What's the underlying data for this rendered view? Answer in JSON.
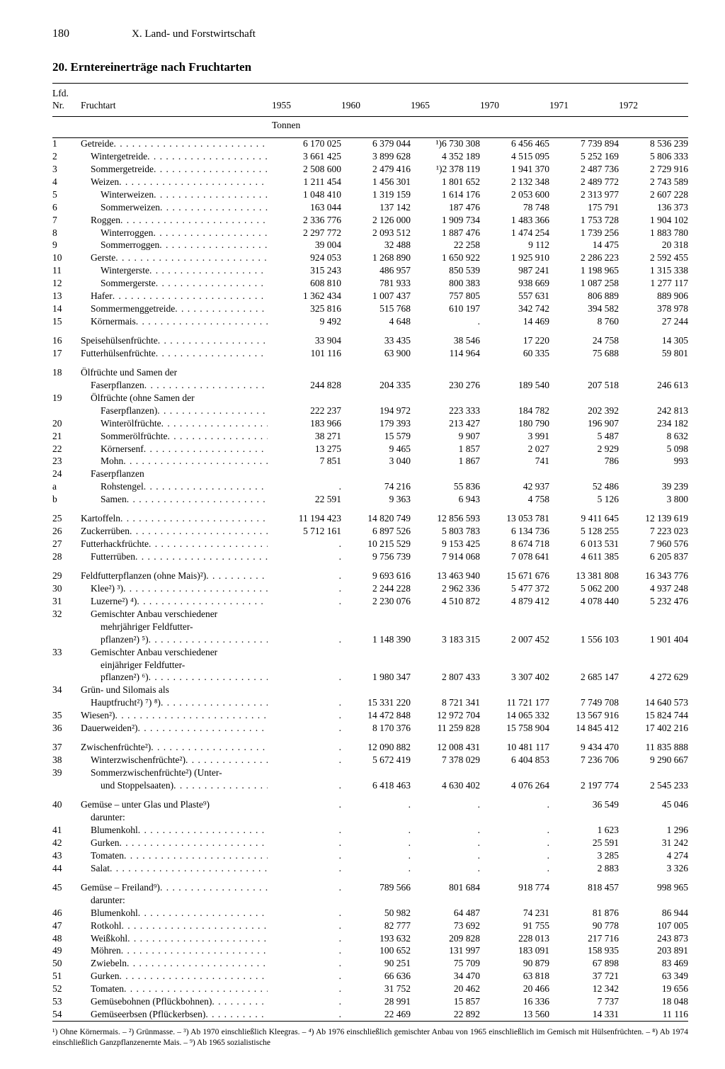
{
  "page_number": "180",
  "section_header": "X. Land- und Forstwirtschaft",
  "table_title": "20. Erntereinerträge nach Fruchtarten",
  "columns": {
    "nr": "Lfd.\nNr.",
    "name": "Fruchtart",
    "years": [
      "1955",
      "1960",
      "1965",
      "1970",
      "1971",
      "1972"
    ],
    "unit": "Tonnen"
  },
  "rows": [
    {
      "nr": "1",
      "label": "Getreide",
      "dots": true,
      "indent": 0,
      "vals": [
        "6 170 025",
        "6 379 044",
        "¹)6 730 308",
        "6 456 465",
        "7 739 894",
        "8 536 239"
      ]
    },
    {
      "nr": "2",
      "label": "Wintergetreide",
      "dots": true,
      "indent": 1,
      "vals": [
        "3 661 425",
        "3 899 628",
        "4 352 189",
        "4 515 095",
        "5 252 169",
        "5 806 333"
      ]
    },
    {
      "nr": "3",
      "label": "Sommergetreide",
      "dots": true,
      "indent": 1,
      "vals": [
        "2 508 600",
        "2 479 416",
        "¹)2 378 119",
        "1 941 370",
        "2 487 736",
        "2 729 916"
      ]
    },
    {
      "nr": "4",
      "label": "Weizen",
      "dots": true,
      "indent": 1,
      "vals": [
        "1 211 454",
        "1 456 301",
        "1 801 652",
        "2 132 348",
        "2 489 772",
        "2 743 589"
      ]
    },
    {
      "nr": "5",
      "label": "Winterweizen",
      "dots": true,
      "indent": 2,
      "vals": [
        "1 048 410",
        "1 319 159",
        "1 614 176",
        "2 053 600",
        "2 313 977",
        "2 607 228"
      ]
    },
    {
      "nr": "6",
      "label": "Sommerweizen",
      "dots": true,
      "indent": 2,
      "vals": [
        "163 044",
        "137 142",
        "187 476",
        "78 748",
        "175 791",
        "136 373"
      ]
    },
    {
      "nr": "7",
      "label": "Roggen",
      "dots": true,
      "indent": 1,
      "vals": [
        "2 336 776",
        "2 126 000",
        "1 909 734",
        "1 483 366",
        "1 753 728",
        "1 904 102"
      ]
    },
    {
      "nr": "8",
      "label": "Winterroggen",
      "dots": true,
      "indent": 2,
      "vals": [
        "2 297 772",
        "2 093 512",
        "1 887 476",
        "1 474 254",
        "1 739 256",
        "1 883 780"
      ]
    },
    {
      "nr": "9",
      "label": "Sommerroggen",
      "dots": true,
      "indent": 2,
      "vals": [
        "39 004",
        "32 488",
        "22 258",
        "9 112",
        "14 475",
        "20 318"
      ]
    },
    {
      "nr": "10",
      "label": "Gerste",
      "dots": true,
      "indent": 1,
      "vals": [
        "924 053",
        "1 268 890",
        "1 650 922",
        "1 925 910",
        "2 286 223",
        "2 592 455"
      ]
    },
    {
      "nr": "11",
      "label": "Wintergerste",
      "dots": true,
      "indent": 2,
      "vals": [
        "315 243",
        "486 957",
        "850 539",
        "987 241",
        "1 198 965",
        "1 315 338"
      ]
    },
    {
      "nr": "12",
      "label": "Sommergerste",
      "dots": true,
      "indent": 2,
      "vals": [
        "608 810",
        "781 933",
        "800 383",
        "938 669",
        "1 087 258",
        "1 277 117"
      ]
    },
    {
      "nr": "13",
      "label": "Hafer",
      "dots": true,
      "indent": 1,
      "vals": [
        "1 362 434",
        "1 007 437",
        "757 805",
        "557 631",
        "806 889",
        "889 906"
      ]
    },
    {
      "nr": "14",
      "label": "Sommermenggetreide",
      "dots": true,
      "indent": 1,
      "vals": [
        "325 816",
        "515 768",
        "610 197",
        "342 742",
        "394 582",
        "378 978"
      ]
    },
    {
      "nr": "15",
      "label": "Körnermais",
      "dots": true,
      "indent": 1,
      "vals": [
        "9 492",
        "4 648",
        ".",
        "14 469",
        "8 760",
        "27 244"
      ]
    },
    {
      "gap": true,
      "nr": "16",
      "label": "Speisehülsenfrüchte",
      "dots": true,
      "indent": 0,
      "vals": [
        "33 904",
        "33 435",
        "38 546",
        "17 220",
        "24 758",
        "14 305"
      ]
    },
    {
      "nr": "17",
      "label": "Futterhülsenfrüchte",
      "dots": true,
      "indent": 0,
      "vals": [
        "101 116",
        "63 900",
        "114 964",
        "60 335",
        "75 688",
        "59 801"
      ]
    },
    {
      "gap": true,
      "nr": "18",
      "label": "Ölfrüchte und Samen der",
      "dots": false,
      "indent": 0,
      "vals": [
        "",
        "",
        "",
        "",
        "",
        ""
      ]
    },
    {
      "nr": "",
      "label": "Faserpflanzen",
      "dots": true,
      "indent": 1,
      "vals": [
        "244 828",
        "204 335",
        "230 276",
        "189 540",
        "207 518",
        "246 613"
      ]
    },
    {
      "nr": "19",
      "label": "Ölfrüchte (ohne Samen der",
      "dots": false,
      "indent": 1,
      "vals": [
        "",
        "",
        "",
        "",
        "",
        ""
      ]
    },
    {
      "nr": "",
      "label": "Faserpflanzen)",
      "dots": true,
      "indent": 2,
      "vals": [
        "222 237",
        "194 972",
        "223 333",
        "184 782",
        "202 392",
        "242 813"
      ]
    },
    {
      "nr": "20",
      "label": "Winterölfrüchte",
      "dots": true,
      "indent": 2,
      "vals": [
        "183 966",
        "179 393",
        "213 427",
        "180 790",
        "196 907",
        "234 182"
      ]
    },
    {
      "nr": "21",
      "label": "Sommerölfrüchte",
      "dots": true,
      "indent": 2,
      "vals": [
        "38 271",
        "15 579",
        "9 907",
        "3 991",
        "5 487",
        "8 632"
      ]
    },
    {
      "nr": "22",
      "label": "Körnersenf",
      "dots": true,
      "indent": 2,
      "vals": [
        "13 275",
        "9 465",
        "1 857",
        "2 027",
        "2 929",
        "5 098"
      ]
    },
    {
      "nr": "23",
      "label": "Mohn",
      "dots": true,
      "indent": 2,
      "vals": [
        "7 851",
        "3 040",
        "1 867",
        "741",
        "786",
        "993"
      ]
    },
    {
      "nr": "24",
      "label": "Faserpflanzen",
      "dots": false,
      "indent": 1,
      "vals": [
        "",
        "",
        "",
        "",
        "",
        ""
      ]
    },
    {
      "nr": "a",
      "label": "Rohstengel",
      "dots": true,
      "indent": 2,
      "vals": [
        ".",
        "74 216",
        "55 836",
        "42 937",
        "52 486",
        "39 239"
      ]
    },
    {
      "nr": "b",
      "label": "Samen",
      "dots": true,
      "indent": 2,
      "vals": [
        "22 591",
        "9 363",
        "6 943",
        "4 758",
        "5 126",
        "3 800"
      ]
    },
    {
      "gap": true,
      "nr": "25",
      "label": "Kartoffeln",
      "dots": true,
      "indent": 0,
      "vals": [
        "11 194 423",
        "14 820 749",
        "12 856 593",
        "13 053 781",
        "9 411 645",
        "12 139 619"
      ]
    },
    {
      "nr": "26",
      "label": "Zuckerrüben",
      "dots": true,
      "indent": 0,
      "vals": [
        "5 712 161",
        "6 897 526",
        "5 803 783",
        "6 134 736",
        "5 128 255",
        "7 223 023"
      ]
    },
    {
      "nr": "27",
      "label": "Futterhackfrüchte",
      "dots": true,
      "indent": 0,
      "vals": [
        ".",
        "10 215 529",
        "9 153 425",
        "8 674 718",
        "6 013 531",
        "7 960 576"
      ]
    },
    {
      "nr": "28",
      "label": "Futterrüben",
      "dots": true,
      "indent": 1,
      "vals": [
        ".",
        "9 756 739",
        "7 914 068",
        "7 078 641",
        "4 611 385",
        "6 205 837"
      ]
    },
    {
      "gap": true,
      "nr": "29",
      "label": "Feldfutterpflanzen (ohne Mais)²)",
      "dots": true,
      "indent": 0,
      "vals": [
        ".",
        "9 693 616",
        "13 463 940",
        "15 671 676",
        "13 381 808",
        "16 343 776"
      ]
    },
    {
      "nr": "30",
      "label": "Klee²) ³)",
      "dots": true,
      "indent": 1,
      "vals": [
        ".",
        "2 244 228",
        "2 962 336",
        "5 477 372",
        "5 062 200",
        "4 937 248"
      ]
    },
    {
      "nr": "31",
      "label": "Luzerne²) ⁴)",
      "dots": true,
      "indent": 1,
      "vals": [
        ".",
        "2 230 076",
        "4 510 872",
        "4 879 412",
        "4 078 440",
        "5 232 476"
      ]
    },
    {
      "nr": "32",
      "label": "Gemischter Anbau verschiedener",
      "dots": false,
      "indent": 1,
      "vals": [
        "",
        "",
        "",
        "",
        "",
        ""
      ]
    },
    {
      "nr": "",
      "label": "mehrjähriger Feldfutter-",
      "dots": false,
      "indent": 2,
      "vals": [
        "",
        "",
        "",
        "",
        "",
        ""
      ]
    },
    {
      "nr": "",
      "label": "pflanzen²) ⁵)",
      "dots": true,
      "indent": 2,
      "vals": [
        ".",
        "1 148 390",
        "3 183 315",
        "2 007 452",
        "1 556 103",
        "1 901 404"
      ]
    },
    {
      "nr": "33",
      "label": "Gemischter Anbau verschiedener",
      "dots": false,
      "indent": 1,
      "vals": [
        "",
        "",
        "",
        "",
        "",
        ""
      ]
    },
    {
      "nr": "",
      "label": "einjähriger Feldfutter-",
      "dots": false,
      "indent": 2,
      "vals": [
        "",
        "",
        "",
        "",
        "",
        ""
      ]
    },
    {
      "nr": "",
      "label": "pflanzen²) ⁶)",
      "dots": true,
      "indent": 2,
      "vals": [
        ".",
        "1 980 347",
        "2 807 433",
        "3 307 402",
        "2 685 147",
        "4 272 629"
      ]
    },
    {
      "nr": "34",
      "label": "Grün- und Silomais als",
      "dots": false,
      "indent": 0,
      "vals": [
        "",
        "",
        "",
        "",
        "",
        ""
      ]
    },
    {
      "nr": "",
      "label": "Hauptfrucht²) ⁷) ⁸)",
      "dots": true,
      "indent": 1,
      "vals": [
        ".",
        "15 331 220",
        "8 721 341",
        "11 721 177",
        "7 749 708",
        "14 640 573"
      ]
    },
    {
      "nr": "35",
      "label": "Wiesen²)",
      "dots": true,
      "indent": 0,
      "vals": [
        ".",
        "14 472 848",
        "12 972 704",
        "14 065 332",
        "13 567 916",
        "15 824 744"
      ]
    },
    {
      "nr": "36",
      "label": "Dauerweiden²)",
      "dots": true,
      "indent": 0,
      "vals": [
        ".",
        "8 170 376",
        "11 259 828",
        "15 758 904",
        "14 845 412",
        "17 402 216"
      ]
    },
    {
      "gap": true,
      "nr": "37",
      "label": "Zwischenfrüchte²)",
      "dots": true,
      "indent": 0,
      "vals": [
        ".",
        "12 090 882",
        "12 008 431",
        "10 481 117",
        "9 434 470",
        "11 835 888"
      ]
    },
    {
      "nr": "38",
      "label": "Winterzwischenfrüchte²)",
      "dots": true,
      "indent": 1,
      "vals": [
        ".",
        "5 672 419",
        "7 378 029",
        "6 404 853",
        "7 236 706",
        "9 290 667"
      ]
    },
    {
      "nr": "39",
      "label": "Sommerzwischenfrüchte²) (Unter-",
      "dots": false,
      "indent": 1,
      "vals": [
        "",
        "",
        "",
        "",
        "",
        ""
      ]
    },
    {
      "nr": "",
      "label": "und Stoppelsaaten)",
      "dots": true,
      "indent": 2,
      "vals": [
        ".",
        "6 418 463",
        "4 630 402",
        "4 076 264",
        "2 197 774",
        "2 545 233"
      ]
    },
    {
      "gap": true,
      "nr": "40",
      "label": "Gemüse – unter Glas und Plaste⁹)",
      "dots": false,
      "indent": 0,
      "vals": [
        ".",
        ".",
        ".",
        ".",
        "36 549",
        "45 046"
      ]
    },
    {
      "nr": "",
      "label": "darunter:",
      "dots": false,
      "indent": 1,
      "vals": [
        "",
        "",
        "",
        "",
        "",
        ""
      ]
    },
    {
      "nr": "41",
      "label": "Blumenkohl",
      "dots": true,
      "indent": 1,
      "vals": [
        ".",
        ".",
        ".",
        ".",
        "1 623",
        "1 296"
      ]
    },
    {
      "nr": "42",
      "label": "Gurken",
      "dots": true,
      "indent": 1,
      "vals": [
        ".",
        ".",
        ".",
        ".",
        "25 591",
        "31 242"
      ]
    },
    {
      "nr": "43",
      "label": "Tomaten",
      "dots": true,
      "indent": 1,
      "vals": [
        ".",
        ".",
        ".",
        ".",
        "3 285",
        "4 274"
      ]
    },
    {
      "nr": "44",
      "label": "Salat",
      "dots": true,
      "indent": 1,
      "vals": [
        ".",
        ".",
        ".",
        ".",
        "2 883",
        "3 326"
      ]
    },
    {
      "gap": true,
      "nr": "45",
      "label": "Gemüse – Freiland⁹)",
      "dots": true,
      "indent": 0,
      "vals": [
        ".",
        "789 566",
        "801 684",
        "918 774",
        "818 457",
        "998 965"
      ]
    },
    {
      "nr": "",
      "label": "darunter:",
      "dots": false,
      "indent": 1,
      "vals": [
        "",
        "",
        "",
        "",
        "",
        ""
      ]
    },
    {
      "nr": "46",
      "label": "Blumenkohl",
      "dots": true,
      "indent": 1,
      "vals": [
        ".",
        "50 982",
        "64 487",
        "74 231",
        "81 876",
        "86 944"
      ]
    },
    {
      "nr": "47",
      "label": "Rotkohl",
      "dots": true,
      "indent": 1,
      "vals": [
        ".",
        "82 777",
        "73 692",
        "91 755",
        "90 778",
        "107 005"
      ]
    },
    {
      "nr": "48",
      "label": "Weißkohl",
      "dots": true,
      "indent": 1,
      "vals": [
        ".",
        "193 632",
        "209 828",
        "228 013",
        "217 716",
        "243 873"
      ]
    },
    {
      "nr": "49",
      "label": "Möhren",
      "dots": true,
      "indent": 1,
      "vals": [
        ".",
        "100 652",
        "131 997",
        "183 091",
        "158 935",
        "203 891"
      ]
    },
    {
      "nr": "50",
      "label": "Zwiebeln",
      "dots": true,
      "indent": 1,
      "vals": [
        ".",
        "90 251",
        "75 709",
        "90 879",
        "67 898",
        "83 469"
      ]
    },
    {
      "nr": "51",
      "label": "Gurken",
      "dots": true,
      "indent": 1,
      "vals": [
        ".",
        "66 636",
        "34 470",
        "63 818",
        "37 721",
        "63 349"
      ]
    },
    {
      "nr": "52",
      "label": "Tomaten",
      "dots": true,
      "indent": 1,
      "vals": [
        ".",
        "31 752",
        "20 462",
        "20 466",
        "12 342",
        "19 656"
      ]
    },
    {
      "nr": "53",
      "label": "Gemüsebohnen (Pflückbohnen)",
      "dots": true,
      "indent": 1,
      "vals": [
        ".",
        "28 991",
        "15 857",
        "16 336",
        "7 737",
        "18 048"
      ]
    },
    {
      "nr": "54",
      "label": "Gemüseerbsen (Pflückerbsen)",
      "dots": true,
      "indent": 1,
      "vals": [
        ".",
        "22 469",
        "22 892",
        "13 560",
        "14 331",
        "11 116"
      ]
    }
  ],
  "footnote": "¹) Ohne Körnermais. – ²) Grünmasse. – ³) Ab 1970 einschließlich Kleegras. – ⁴) Ab 1976 einschließlich gemischter Anbau von 1965 einschließlich im Gemisch mit Hülsenfrüchten. – ⁸) Ab 1974 einschließlich Ganzpflanzenernte Mais. – ⁹) Ab 1965 sozialistische"
}
